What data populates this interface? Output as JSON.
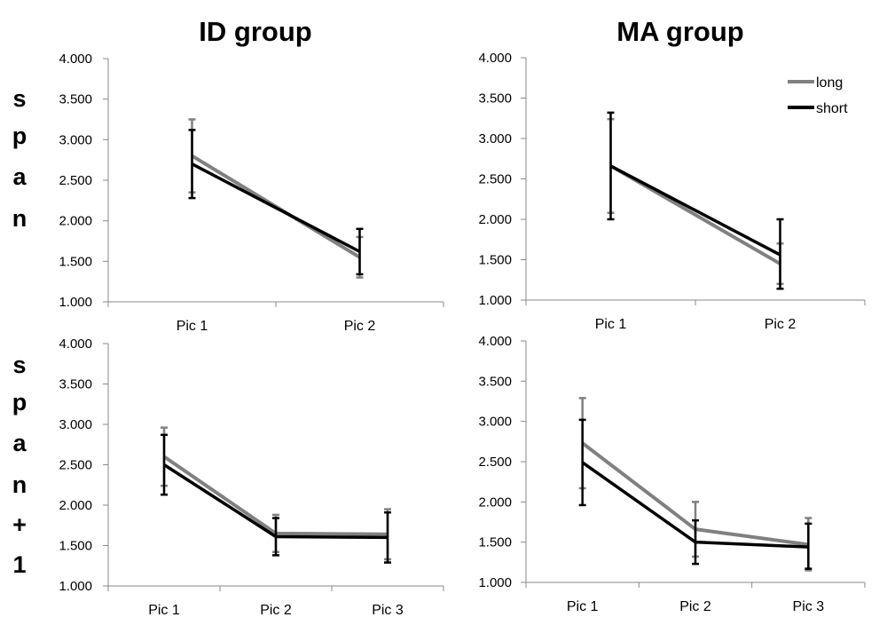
{
  "column_titles": [
    "ID group",
    "MA group"
  ],
  "row_labels": [
    [
      "s",
      "p",
      "a",
      "n"
    ],
    [
      "s",
      "p",
      "a",
      "n",
      "+",
      "1"
    ]
  ],
  "colors": {
    "long": "#808080",
    "short": "#000000"
  },
  "chart_data": [
    {
      "type": "line",
      "group": "ID group",
      "condition": "span",
      "categories": [
        "Pic 1",
        "Pic 2"
      ],
      "ylim": [
        1.0,
        4.0
      ],
      "yticks": [
        "1.000",
        "1.500",
        "2.000",
        "2.500",
        "3.000",
        "3.500",
        "4.000"
      ],
      "grid": false,
      "series": [
        {
          "name": "long",
          "values": [
            2.8,
            1.55
          ],
          "err_low": [
            2.35,
            1.3
          ],
          "err_high": [
            3.25,
            1.8
          ]
        },
        {
          "name": "short",
          "values": [
            2.7,
            1.62
          ],
          "err_low": [
            2.28,
            1.34
          ],
          "err_high": [
            3.12,
            1.9
          ]
        }
      ]
    },
    {
      "type": "line",
      "group": "MA group",
      "condition": "span",
      "categories": [
        "Pic 1",
        "Pic 2"
      ],
      "ylim": [
        1.0,
        4.0
      ],
      "yticks": [
        "1.000",
        "1.500",
        "2.000",
        "2.500",
        "3.000",
        "3.500",
        "4.000"
      ],
      "grid": false,
      "legend": {
        "position": "top-right",
        "entries": [
          "long",
          "short"
        ]
      },
      "series": [
        {
          "name": "long",
          "values": [
            2.66,
            1.45
          ],
          "err_low": [
            2.08,
            1.2
          ],
          "err_high": [
            3.24,
            1.7
          ]
        },
        {
          "name": "short",
          "values": [
            2.66,
            1.56
          ],
          "err_low": [
            2.0,
            1.14
          ],
          "err_high": [
            3.32,
            2.0
          ]
        }
      ]
    },
    {
      "type": "line",
      "group": "ID group",
      "condition": "span+1",
      "categories": [
        "Pic 1",
        "Pic 2",
        "Pic 3"
      ],
      "ylim": [
        1.0,
        4.0
      ],
      "yticks": [
        "1.000",
        "1.500",
        "2.000",
        "2.500",
        "3.000",
        "3.500",
        "4.000"
      ],
      "grid": false,
      "series": [
        {
          "name": "long",
          "values": [
            2.6,
            1.65,
            1.64
          ],
          "err_low": [
            2.24,
            1.42,
            1.33
          ],
          "err_high": [
            2.96,
            1.88,
            1.95
          ]
        },
        {
          "name": "short",
          "values": [
            2.5,
            1.61,
            1.6
          ],
          "err_low": [
            2.13,
            1.38,
            1.29
          ],
          "err_high": [
            2.87,
            1.84,
            1.91
          ]
        }
      ]
    },
    {
      "type": "line",
      "group": "MA group",
      "condition": "span+1",
      "categories": [
        "Pic 1",
        "Pic 2",
        "Pic 3"
      ],
      "ylim": [
        1.0,
        4.0
      ],
      "yticks": [
        "1.000",
        "1.500",
        "2.000",
        "2.500",
        "3.000",
        "3.500",
        "4.000"
      ],
      "grid": false,
      "series": [
        {
          "name": "long",
          "values": [
            2.73,
            1.66,
            1.47
          ],
          "err_low": [
            2.17,
            1.32,
            1.15
          ],
          "err_high": [
            3.29,
            2.0,
            1.8
          ]
        },
        {
          "name": "short",
          "values": [
            2.49,
            1.5,
            1.44
          ],
          "err_low": [
            1.96,
            1.23,
            1.17
          ],
          "err_high": [
            3.02,
            1.77,
            1.73
          ]
        }
      ]
    }
  ]
}
